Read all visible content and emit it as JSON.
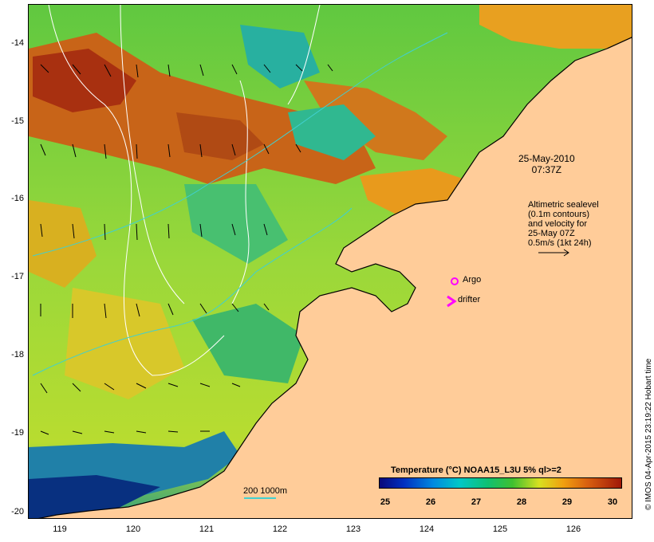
{
  "map": {
    "axes": {
      "y_ticks": [
        "-14",
        "-15",
        "-16",
        "-17",
        "-18",
        "-19",
        "-20"
      ],
      "x_ticks": [
        "119",
        "120",
        "121",
        "122",
        "123",
        "124",
        "125",
        "126"
      ]
    },
    "annotations": {
      "date": "25-May-2010",
      "time": "07:37Z",
      "altimetry_lines": [
        "Altimetric sealevel",
        "(0.1m contours)",
        "and velocity for",
        "25-May 07Z",
        "0.5m/s (1kt 24h)"
      ],
      "argo": "Argo",
      "drifter": "drifter",
      "bathymetry_scale": "200  1000m"
    },
    "colorbar": {
      "title": "Temperature (°C) NOAA15_L3U 5% ql>=2",
      "ticks": [
        "25",
        "26",
        "27",
        "28",
        "29",
        "30"
      ]
    },
    "credit": "© IMOS 04-Apr-2015 23:19:22 Hobart time",
    "colors": {
      "land": "#ffcc99",
      "argo_marker": "#ff00ff",
      "drifter_marker": "#ff00ff",
      "contour": "#ffffff",
      "bathymetry": "#40d0d0"
    }
  }
}
